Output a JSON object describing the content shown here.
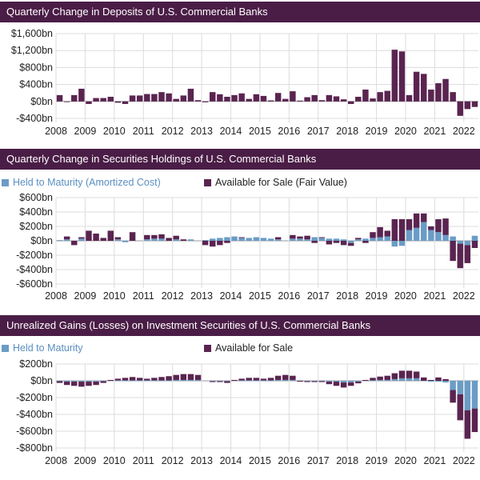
{
  "colors": {
    "banner": "#4a1d46",
    "htm": "#6a9cc6",
    "afs": "#5a2450",
    "deposits": "#5a2450"
  },
  "years": [
    "2008",
    "2009",
    "2010",
    "2011",
    "2012",
    "2013",
    "2014",
    "2015",
    "2016",
    "2017",
    "2018",
    "2019",
    "2020",
    "2021",
    "2022"
  ],
  "chart_data": [
    {
      "type": "bar",
      "title": "Quarterly Change in Deposits of U.S. Commercial Banks",
      "ylim": [
        -400,
        1600
      ],
      "yticks": [
        -400,
        0,
        400,
        800,
        1200,
        1600
      ],
      "ytick_labels": [
        "-$400bn",
        "$0bn",
        "$400bn",
        "$800bn",
        "$1,200bn",
        "$1,600bn"
      ],
      "x_start_year": 2008,
      "series": [
        {
          "values": [
            150,
            0,
            150,
            300,
            -60,
            80,
            80,
            110,
            -30,
            -60,
            140,
            140,
            175,
            175,
            220,
            190,
            60,
            140,
            300,
            30,
            -20,
            220,
            170,
            110,
            150,
            190,
            60,
            170,
            130,
            25,
            200,
            60,
            240,
            20,
            100,
            150,
            30,
            150,
            120,
            50,
            -60,
            110,
            280,
            70,
            220,
            250,
            1220,
            1180,
            150,
            700,
            650,
            280,
            430,
            530,
            220,
            -340,
            -180,
            -130
          ]
        }
      ]
    },
    {
      "type": "bar",
      "title": "Quarterly Change in Securities Holdings of U.S. Commercial Banks",
      "ylim": [
        -600,
        600
      ],
      "yticks": [
        -600,
        -400,
        -200,
        0,
        200,
        400,
        600
      ],
      "ytick_labels": [
        "-$600bn",
        "-$400bn",
        "-$200bn",
        "$0bn",
        "$200bn",
        "$400bn",
        "$600bn"
      ],
      "x_start_year": 2008,
      "stacked": true,
      "series": [
        {
          "name": "Held to Maturity (Amortized Cost)",
          "values": [
            10,
            20,
            0,
            30,
            0,
            0,
            0,
            0,
            20,
            -20,
            0,
            0,
            20,
            30,
            30,
            0,
            20,
            0,
            20,
            0,
            10,
            30,
            40,
            50,
            60,
            40,
            40,
            50,
            40,
            30,
            20,
            0,
            30,
            30,
            20,
            50,
            40,
            30,
            30,
            20,
            -30,
            20,
            30,
            40,
            50,
            60,
            -80,
            -70,
            150,
            180,
            260,
            150,
            120,
            80,
            60,
            -40,
            -60,
            70
          ]
        },
        {
          "name": "Available for Sale (Fair Value)",
          "values": [
            0,
            40,
            -60,
            20,
            140,
            100,
            40,
            140,
            30,
            0,
            120,
            0,
            60,
            50,
            60,
            40,
            50,
            20,
            0,
            0,
            -60,
            -80,
            -60,
            -30,
            0,
            10,
            0,
            0,
            0,
            0,
            30,
            0,
            50,
            30,
            50,
            -30,
            10,
            -50,
            -30,
            -60,
            -40,
            20,
            -30,
            80,
            140,
            80,
            300,
            300,
            150,
            200,
            120,
            50,
            180,
            230,
            -280,
            -340,
            -250,
            -100
          ]
        }
      ]
    },
    {
      "type": "bar",
      "title": "Unrealized Gains (Losses) on Investment Securities of U.S. Commercial Banks",
      "ylim": [
        -800,
        200
      ],
      "yticks": [
        -800,
        -600,
        -400,
        -200,
        0,
        200
      ],
      "ytick_labels": [
        "-$800bn",
        "-$600bn",
        "-$400bn",
        "-$200bn",
        "$0bn",
        "$200bn"
      ],
      "x_start_year": 2008,
      "stacked": true,
      "series": [
        {
          "name": "Held to Maturity",
          "values": [
            -5,
            -10,
            -10,
            -10,
            -10,
            -10,
            -5,
            0,
            5,
            5,
            5,
            5,
            5,
            5,
            5,
            5,
            10,
            10,
            10,
            10,
            0,
            -5,
            -5,
            -5,
            0,
            5,
            5,
            5,
            5,
            5,
            10,
            10,
            10,
            0,
            -5,
            -5,
            -5,
            -10,
            -10,
            -20,
            -20,
            -10,
            0,
            5,
            10,
            10,
            20,
            30,
            30,
            30,
            0,
            -10,
            -10,
            -20,
            -110,
            -160,
            -350,
            -330
          ]
        },
        {
          "name": "Available for Sale",
          "values": [
            -20,
            -40,
            -50,
            -60,
            -50,
            -40,
            -20,
            10,
            20,
            30,
            40,
            30,
            20,
            30,
            40,
            50,
            60,
            70,
            70,
            60,
            0,
            -10,
            -10,
            -20,
            10,
            20,
            30,
            30,
            20,
            30,
            50,
            60,
            50,
            -10,
            -10,
            -10,
            -10,
            -30,
            -50,
            -60,
            -40,
            -20,
            10,
            30,
            40,
            50,
            70,
            90,
            90,
            80,
            40,
            10,
            40,
            20,
            -150,
            -310,
            -340,
            -280
          ]
        }
      ]
    }
  ]
}
